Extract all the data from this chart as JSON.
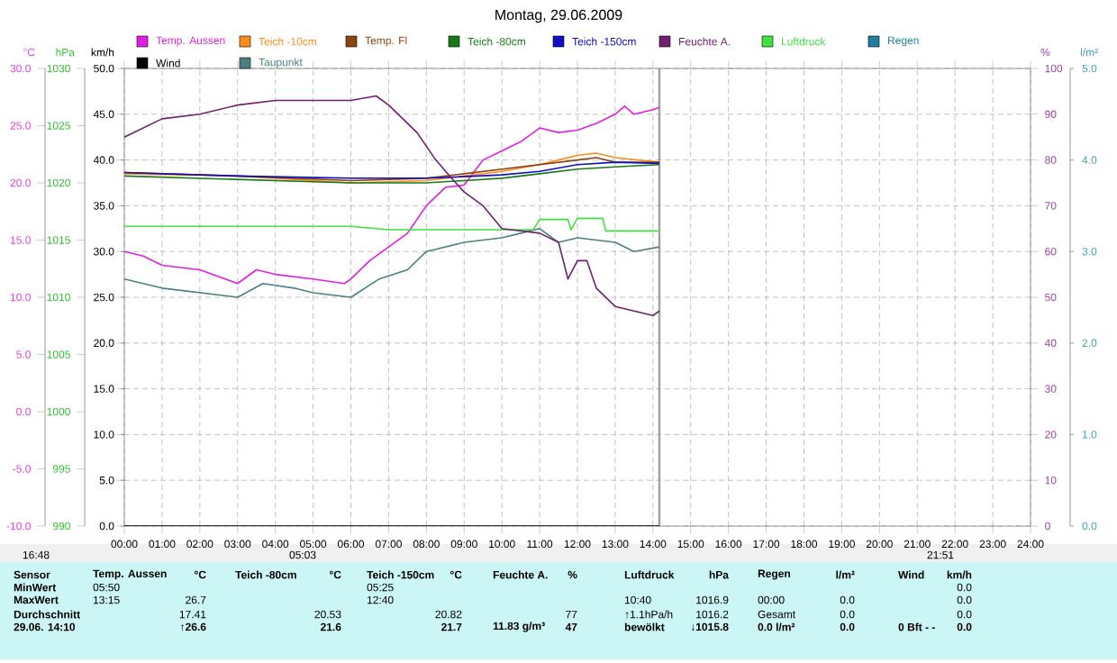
{
  "chart_data": {
    "type": "line",
    "title": "Montag, 29.06.2009",
    "legend": "top",
    "grid": true,
    "xlim": [
      0,
      24
    ],
    "xticks": [
      {
        "value": 0,
        "label": "00:00"
      },
      {
        "value": 1,
        "label": "01:00"
      },
      {
        "value": 2,
        "label": "02:00"
      },
      {
        "value": 3,
        "label": "03:00"
      },
      {
        "value": 4,
        "label": "04:00"
      },
      {
        "value": 5,
        "label": "05:00"
      },
      {
        "value": 6,
        "label": "06:00"
      },
      {
        "value": 7,
        "label": "07:00"
      },
      {
        "value": 8,
        "label": "08:00"
      },
      {
        "value": 9,
        "label": "09:00"
      },
      {
        "value": 10,
        "label": "10:00"
      },
      {
        "value": 11,
        "label": "11:00"
      },
      {
        "value": 12,
        "label": "12:00"
      },
      {
        "value": 13,
        "label": "13:00"
      },
      {
        "value": 14,
        "label": "14:00"
      },
      {
        "value": 15,
        "label": "15:00"
      },
      {
        "value": 16,
        "label": "16:00"
      },
      {
        "value": 17,
        "label": "17:00"
      },
      {
        "value": 18,
        "label": "18:00"
      },
      {
        "value": 19,
        "label": "19:00"
      },
      {
        "value": 20,
        "label": "20:00"
      },
      {
        "value": 21,
        "label": "21:00"
      },
      {
        "value": 22,
        "label": "22:00"
      },
      {
        "value": 23,
        "label": "23:00"
      },
      {
        "value": 24,
        "label": "24:00"
      }
    ],
    "ylabel": "°C",
    "ylim": [
      -10,
      30
    ],
    "yticks": [
      {
        "value": -10,
        "label": "-10.0"
      },
      {
        "value": -5,
        "label": "-5.0"
      },
      {
        "value": 0,
        "label": "0.0"
      },
      {
        "value": 5,
        "label": "5.0"
      },
      {
        "value": 10,
        "label": "10.0"
      },
      {
        "value": 15,
        "label": "15.0"
      },
      {
        "value": 20,
        "label": "20.0"
      },
      {
        "value": 25,
        "label": "25.0"
      },
      {
        "value": 30,
        "label": "30.0"
      }
    ],
    "y2label": "%",
    "y2lim": [
      0,
      100
    ],
    "y2ticks": [
      0,
      10,
      20,
      30,
      40,
      50,
      60,
      70,
      80,
      90,
      100
    ],
    "y3label": "hPa",
    "y3lim": [
      990,
      1030
    ],
    "y3ticks": [
      990,
      995,
      1000,
      1005,
      1010,
      1015,
      1020,
      1025,
      1030
    ],
    "series": [
      {
        "name": "Temp. Aussen",
        "color": "#e020e0",
        "x": [
          0,
          0.5,
          1,
          2,
          3,
          3.5,
          4,
          5,
          5.83,
          6,
          6.5,
          7,
          7.5,
          8,
          8.5,
          9,
          9.5,
          10,
          10.5,
          11,
          11.5,
          12,
          12.5,
          13,
          13.25,
          13.5,
          14,
          14.17
        ],
        "values": [
          14.0,
          13.6,
          12.8,
          12.4,
          11.2,
          12.4,
          12.0,
          11.6,
          11.2,
          11.6,
          13.2,
          14.4,
          15.6,
          18.0,
          19.6,
          19.8,
          22.0,
          22.8,
          23.6,
          24.8,
          24.4,
          24.6,
          25.2,
          26.0,
          26.7,
          26.0,
          26.4,
          26.6
        ]
      },
      {
        "name": "Teich -10cm",
        "color": "#ff8c1a",
        "x": [
          0,
          3,
          6,
          8,
          9,
          10,
          11,
          11.5,
          12,
          12.5,
          13,
          14.17
        ],
        "values": [
          20.8,
          20.6,
          20.0,
          20.2,
          20.6,
          21.0,
          21.6,
          22.0,
          22.4,
          22.6,
          22.2,
          21.8
        ]
      },
      {
        "name": "Temp. Fl",
        "color": "#8b4513",
        "x": [
          0,
          3,
          6,
          8,
          9,
          10,
          11,
          12,
          12.5,
          13,
          14.17
        ],
        "values": [
          20.9,
          20.6,
          20.2,
          20.4,
          20.8,
          21.2,
          21.6,
          22.0,
          22.2,
          21.8,
          21.8
        ]
      },
      {
        "name": "Teich -80cm",
        "color": "#1a7a1a",
        "x": [
          0,
          3,
          6,
          8,
          9,
          10,
          11,
          12,
          13,
          14.17
        ],
        "values": [
          20.6,
          20.3,
          20.0,
          20.0,
          20.2,
          20.4,
          20.8,
          21.2,
          21.4,
          21.6
        ]
      },
      {
        "name": "Teich -150cm",
        "color": "#1010c0",
        "x": [
          0,
          3,
          6,
          8,
          10,
          11,
          12,
          13,
          14.17
        ],
        "values": [
          20.9,
          20.6,
          20.4,
          20.4,
          20.7,
          21.0,
          21.6,
          21.8,
          21.7
        ]
      },
      {
        "name": "Feuchte A.",
        "color": "#702070",
        "axis": "y2",
        "x": [
          0,
          1,
          2,
          3,
          4,
          6,
          6.67,
          7,
          7.75,
          8.25,
          8.67,
          9,
          9.5,
          10,
          11,
          11.5,
          11.75,
          12,
          12.25,
          12.5,
          13,
          13.5,
          14,
          14.17
        ],
        "values": [
          85,
          89,
          90,
          92,
          93,
          93,
          94,
          92,
          86,
          80,
          76,
          73,
          70,
          65,
          64,
          62,
          54,
          58,
          58,
          52,
          48,
          47,
          46,
          47
        ]
      },
      {
        "name": "Luftdruck",
        "color": "#40e040",
        "axis": "y3",
        "x": [
          0,
          6,
          7,
          10.83,
          11,
          11.75,
          11.83,
          12,
          12.67,
          12.75,
          14.17
        ],
        "values": [
          1016.2,
          1016.2,
          1015.9,
          1015.9,
          1016.8,
          1016.8,
          1015.9,
          1016.9,
          1016.9,
          1015.8,
          1015.8
        ]
      },
      {
        "name": "Regen",
        "color": "#2080a0",
        "axis": "y2",
        "values": [
          null
        ]
      },
      {
        "name": "Wind",
        "color": "#000000",
        "axis": "y2",
        "x": [
          0,
          14.17
        ],
        "values": [
          0,
          0
        ]
      },
      {
        "name": "Taupunkt",
        "color": "#4a8080",
        "x": [
          0,
          0.5,
          1,
          2,
          3,
          3.67,
          4.5,
          5,
          6,
          6.75,
          7.5,
          8,
          9,
          10,
          10.5,
          11,
          11.5,
          12,
          13,
          13.5,
          14.17
        ],
        "values": [
          11.6,
          11.2,
          10.8,
          10.4,
          10.0,
          11.2,
          10.8,
          10.4,
          10.0,
          11.6,
          12.4,
          14.0,
          14.8,
          15.2,
          15.6,
          16.0,
          14.8,
          15.2,
          14.8,
          14.0,
          14.4
        ]
      }
    ],
    "ref_lines": [
      {
        "axis": "x",
        "value": 14.17,
        "color": "#a0a0a0"
      }
    ],
    "annotations": [
      "16:48",
      "05:03",
      "21:51",
      "km/h",
      "0.0",
      "5.0",
      "10.0",
      "15.0",
      "20.0",
      "25.0",
      "30.0",
      "35.0",
      "40.0",
      "45.0",
      "50.0",
      "l/m²",
      "0.0",
      "1.0",
      "2.0",
      "3.0",
      "4.0",
      "5.0",
      "Sensor",
      "Temp. Aussen",
      "°C",
      "Teich -80cm",
      "°C",
      "Teich -150cm",
      "°C",
      "Feuchte A.",
      "%",
      "Luftdruck",
      "hPa",
      "Regen",
      "l/m²",
      "Wind",
      "km/h",
      "MinWert",
      "05:50",
      "05:25",
      "0.0",
      "MaxWert",
      "13:15",
      "26.7",
      "12:40",
      "10:40",
      "1016.9",
      "00:00",
      "0.0",
      "0.0",
      "Durchschnitt",
      "17.41",
      "20.53",
      "20.82",
      "77",
      "↑1.1hPa/h",
      "1016.2",
      "Gesamt",
      "0.0",
      "0.0",
      "29.06. 14:10",
      "↑26.6",
      "21.6",
      "21.7",
      "11.83 g/m³",
      "47",
      "bewölkt",
      "↓1015.8",
      "0.0 l/m²",
      "0.0",
      "0 Bft - -",
      "0.0"
    ]
  }
}
